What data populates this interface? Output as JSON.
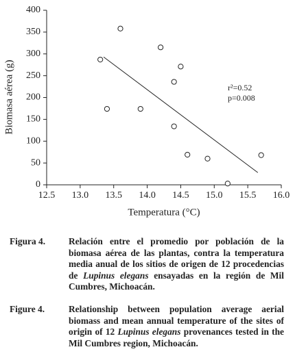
{
  "chart_data": {
    "type": "scatter",
    "xlabel": "Temperatura (°C)",
    "ylabel": "Biomasa aérea (g)",
    "x": [
      13.3,
      13.4,
      13.6,
      13.9,
      14.2,
      14.4,
      14.4,
      14.5,
      14.6,
      14.9,
      15.2,
      15.7
    ],
    "values": [
      287,
      174,
      358,
      174,
      315,
      236,
      134,
      271,
      69,
      60,
      3,
      68
    ],
    "trendline": {
      "x": [
        13.35,
        15.65
      ],
      "values": [
        293,
        28
      ]
    },
    "annotations": [
      "r²=0.52",
      "p=0.008"
    ],
    "xlim": [
      12.5,
      16.0
    ],
    "xticks": [
      12.5,
      {
        "value": 13,
        "label": "13.0"
      },
      13.5,
      {
        "value": 14,
        "label": "14.0"
      },
      14.5,
      {
        "value": 15,
        "label": "15.0"
      },
      15.5,
      {
        "value": 16,
        "label": "16.0"
      }
    ],
    "ylim": [
      0,
      400
    ],
    "yticks": [
      0,
      50,
      100,
      150,
      200,
      250,
      300,
      350,
      400
    ]
  },
  "captions": [
    {
      "label": "Figura 4.",
      "parts": [
        "Relación entre el promedio por población de la biomasa aérea de las plantas, contra la temperatura media anual de los sitios de origen de 12 procedencias de ",
        "Lupinus elegans",
        " ensayadas en  la región de Mil Cumbres, Michoacán."
      ]
    },
    {
      "label": "Figure 4.",
      "parts": [
        "Relationship between population average aerial biomass and mean annual temperature of the sites of origin of 12 ",
        "Lupinus elegans",
        " provenances tested in the Mil Cumbres region, Michoacán."
      ]
    }
  ]
}
